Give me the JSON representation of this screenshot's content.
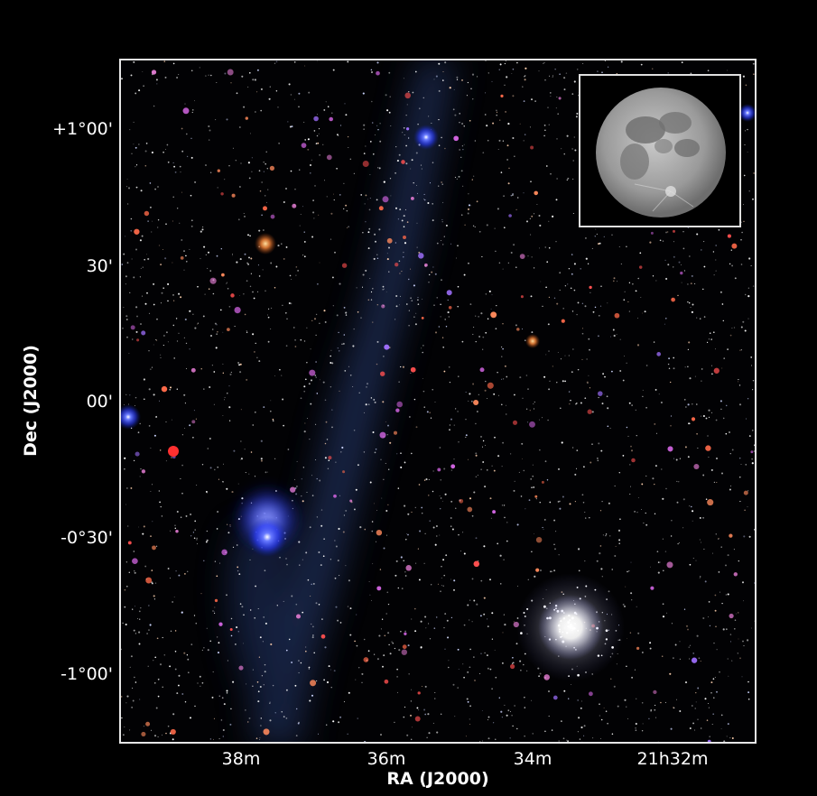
{
  "axes": {
    "xlabel": "RA (J2000)",
    "ylabel": "Dec (J2000)",
    "x_ticks": [
      "38m",
      "36m",
      "34m",
      "21h32m"
    ],
    "y_ticks": [
      "+1°00'",
      "30'",
      "00'",
      "-0°30'",
      "-1°00'"
    ]
  },
  "image": {
    "content": "star field with blue nebulae and a globular cluster",
    "inset": "full moon"
  },
  "colors": {
    "background": "#000000",
    "frame": "#e6e6e6",
    "nebula": "#2a3a6a",
    "hot_star": "#3a5cff",
    "cluster": "#ffffff"
  }
}
